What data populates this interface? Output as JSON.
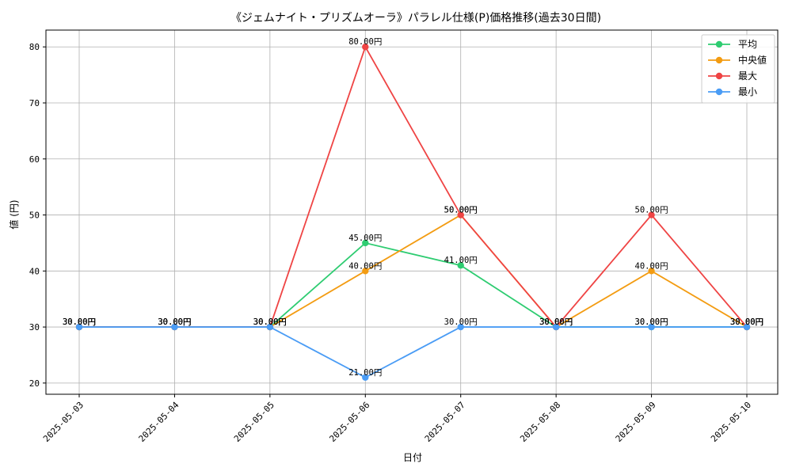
{
  "chart_data": {
    "type": "line",
    "title": "《ジェムナイト・プリズムオーラ》パラレル仕様(P)価格推移(過去30日間)",
    "xlabel": "日付",
    "ylabel": "値 (円)",
    "x": [
      "2025-05-03",
      "2025-05-04",
      "2025-05-05",
      "2025-05-06",
      "2025-05-07",
      "2025-05-08",
      "2025-05-09",
      "2025-05-10"
    ],
    "ylim": [
      18,
      83
    ],
    "yticks": [
      20,
      30,
      40,
      50,
      60,
      70,
      80
    ],
    "grid": true,
    "legend_position": "top-right",
    "series": [
      {
        "name": "平均",
        "color": "#2ecc71",
        "values": [
          30,
          30,
          30,
          45,
          41,
          30,
          30,
          30
        ],
        "labels": [
          "30.00円",
          "30.00円",
          "30.00円",
          "45.00円",
          "41.00円",
          "30.00円",
          "30.00円",
          "30.00円"
        ]
      },
      {
        "name": "中央値",
        "color": "#f39c12",
        "values": [
          30,
          30,
          30,
          40,
          50,
          30,
          40,
          30
        ],
        "labels": [
          "30.00円",
          "30.00円",
          "30.00円",
          "40.00円",
          "50.00円",
          "30.00円",
          "40.00円",
          "30.00円"
        ]
      },
      {
        "name": "最大",
        "color": "#ef4444",
        "values": [
          30,
          30,
          30,
          80,
          50,
          30,
          50,
          30
        ],
        "labels": [
          "30.00円",
          "30.00円",
          "30.00円",
          "80.00円",
          "50.00円",
          "30.00円",
          "50.00円",
          "30.00円"
        ]
      },
      {
        "name": "最小",
        "color": "#4a9cf5",
        "values": [
          30,
          30,
          30,
          21,
          30,
          30,
          30,
          30
        ],
        "labels": [
          "30.00円",
          "30.00円",
          "30.00円",
          "21.00円",
          "30.00円",
          "30.00円",
          "30.00円",
          "30.00円"
        ]
      }
    ]
  }
}
